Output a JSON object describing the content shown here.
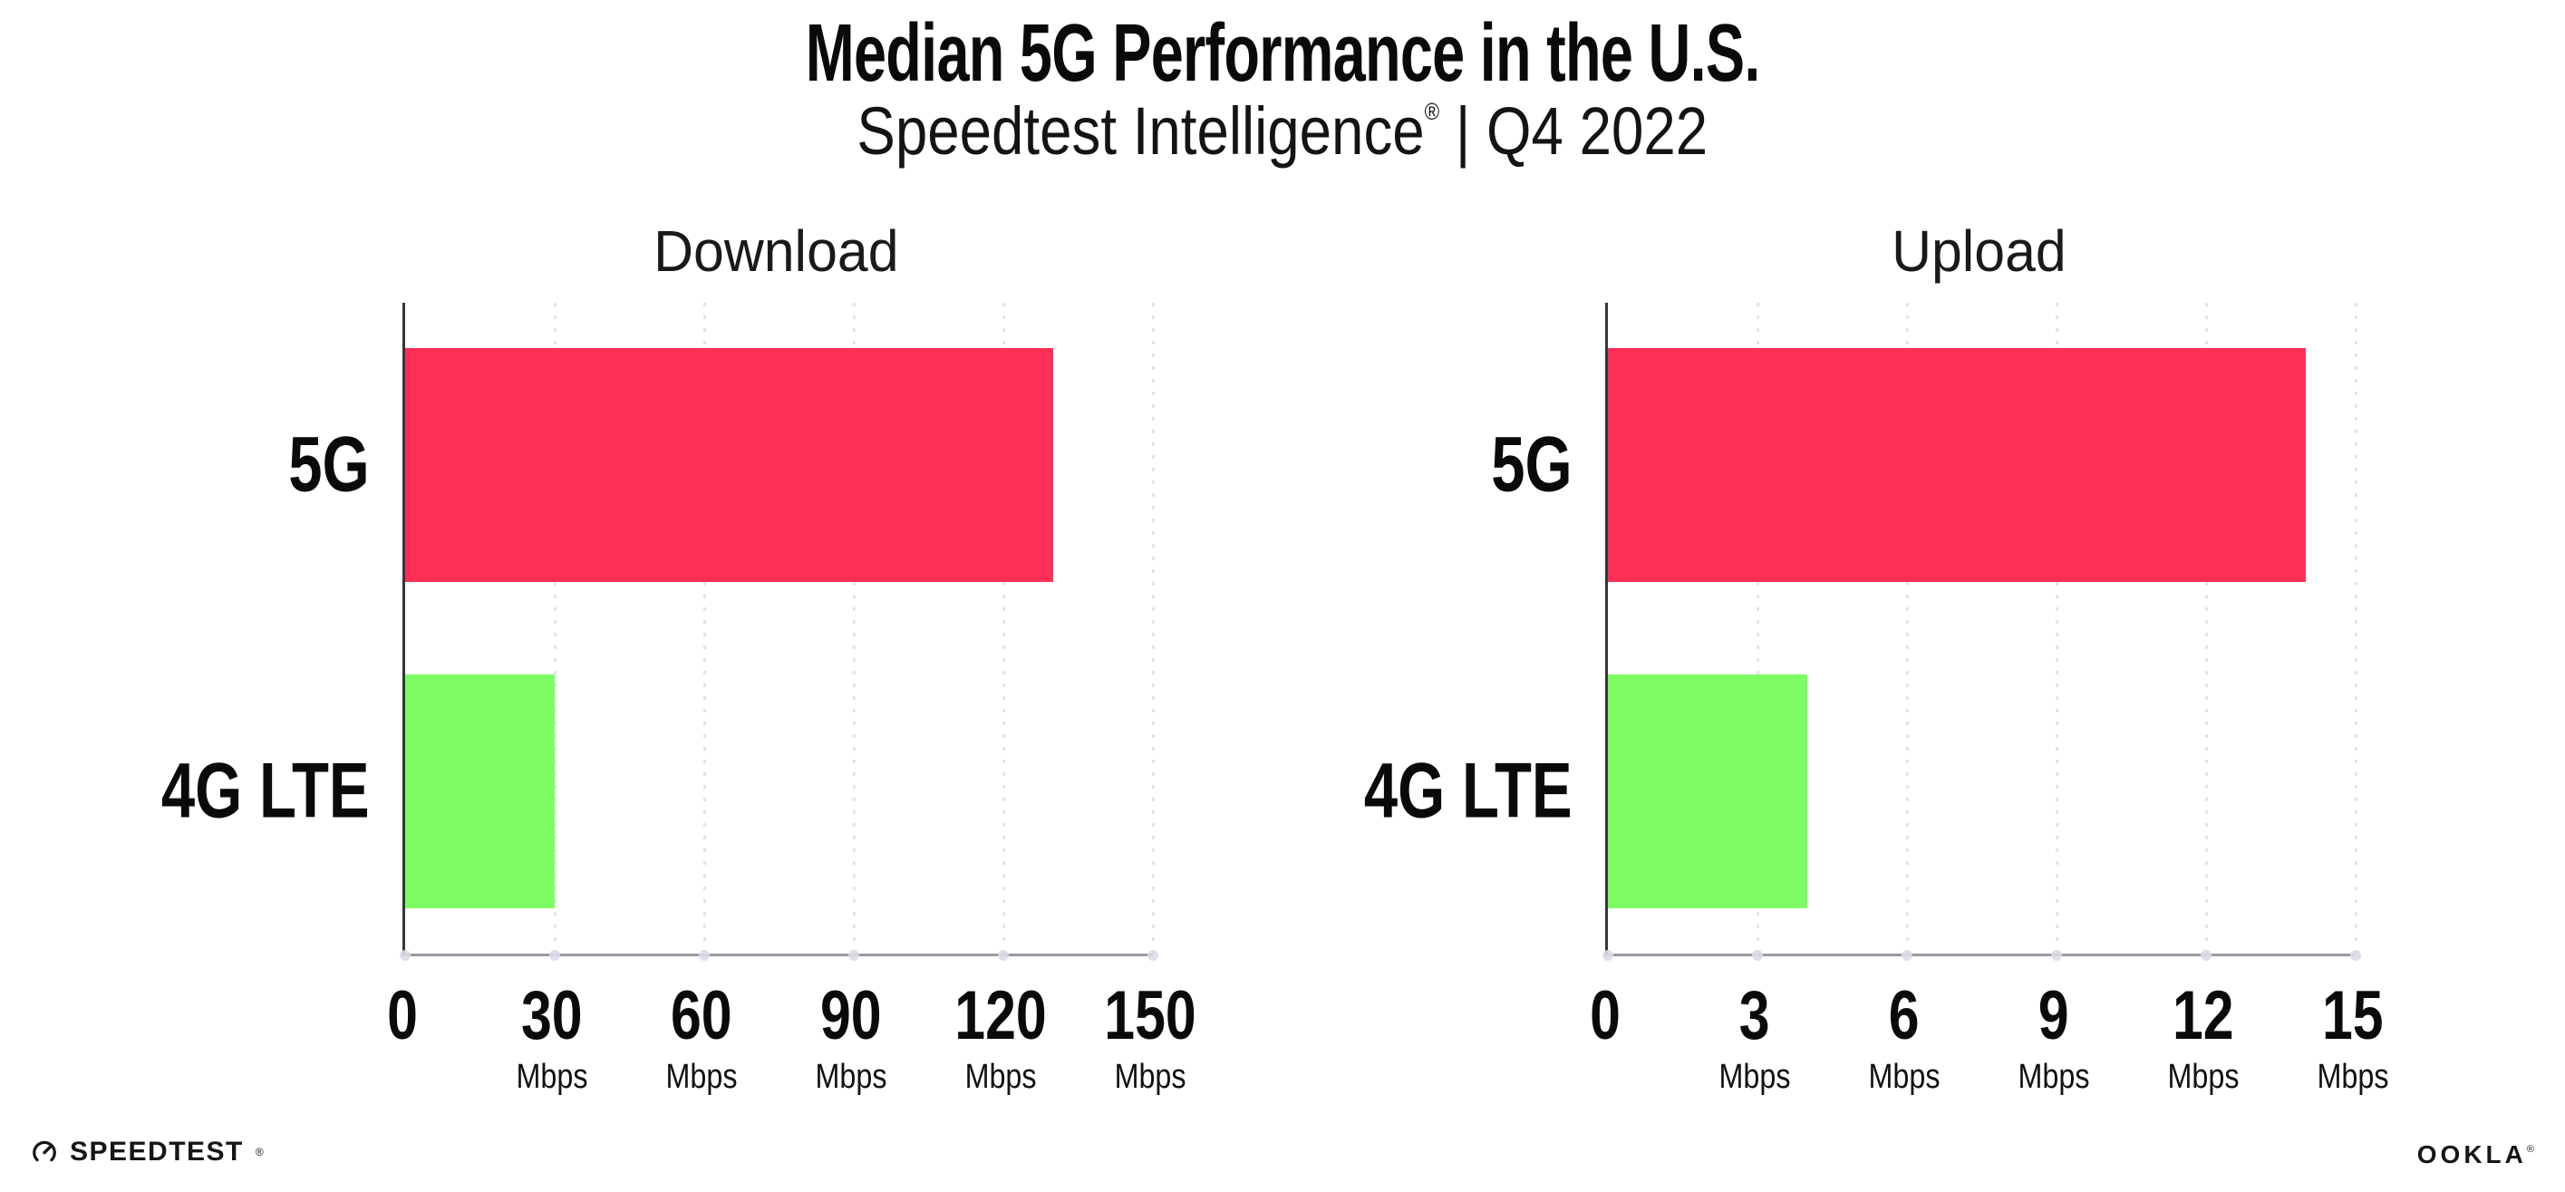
{
  "header": {
    "title": "Median 5G Performance in the U.S.",
    "subtitle_brand": "Speedtest Intelligence",
    "subtitle_reg": "®",
    "subtitle_rest": " | Q4 2022"
  },
  "colors": {
    "bar_5g": "#FF2E55",
    "bar_4g_lte": "#7EFC64",
    "gridline": "#E3E3EE",
    "x_axis": "#9A9AA2",
    "y_axis": "#35353F",
    "text": "#0A0A0A"
  },
  "chart_data": [
    {
      "type": "bar",
      "orientation": "horizontal",
      "title": "Download",
      "categories": [
        "5G",
        "4G LTE"
      ],
      "values": [
        130,
        30
      ],
      "unit": "Mbps",
      "xlim": [
        0,
        150
      ],
      "xticks": [
        0,
        30,
        60,
        90,
        120,
        150
      ],
      "bar_colors": [
        "#FF2E55",
        "#7EFC64"
      ],
      "grid": true,
      "legend": "none"
    },
    {
      "type": "bar",
      "orientation": "horizontal",
      "title": "Upload",
      "categories": [
        "5G",
        "4G LTE"
      ],
      "values": [
        14,
        4
      ],
      "unit": "Mbps",
      "xlim": [
        0,
        15
      ],
      "xticks": [
        0,
        3,
        6,
        9,
        12,
        15
      ],
      "bar_colors": [
        "#FF2E55",
        "#7EFC64"
      ],
      "grid": true,
      "legend": "none"
    }
  ],
  "footer": {
    "speedtest_label": "SPEEDTEST",
    "speedtest_reg": "®",
    "ookla_label": "OOKLA",
    "ookla_reg": "®"
  }
}
